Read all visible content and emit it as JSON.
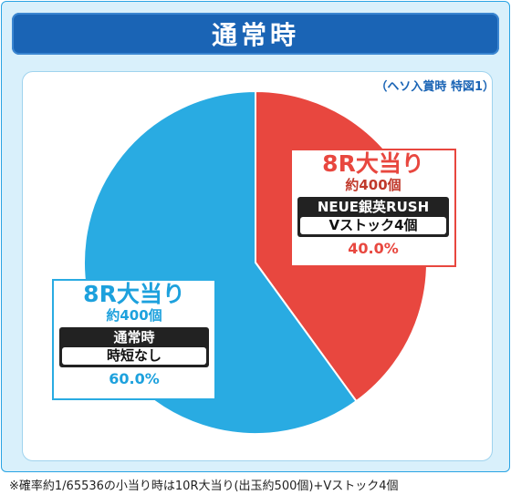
{
  "header": {
    "title": "通常時"
  },
  "note": "（ヘソ入賞時 特図1）",
  "chart_data": {
    "type": "pie",
    "title": "通常時",
    "slices": [
      {
        "value": 40.0,
        "label": "40.0%",
        "color": "#e8473f",
        "heading": "8R大当り",
        "balls": "約400個",
        "mode": "NEUE銀英RUSH",
        "detail": "Vストック4個"
      },
      {
        "value": 60.0,
        "label": "60.0%",
        "color": "#29abe2",
        "heading": "8R大当り",
        "balls": "約400個",
        "mode": "通常時",
        "detail": "時短なし"
      }
    ]
  },
  "footnote": "※確率約1/65536の小当り時は10R大当り(出玉約500個)+Vストック4個"
}
